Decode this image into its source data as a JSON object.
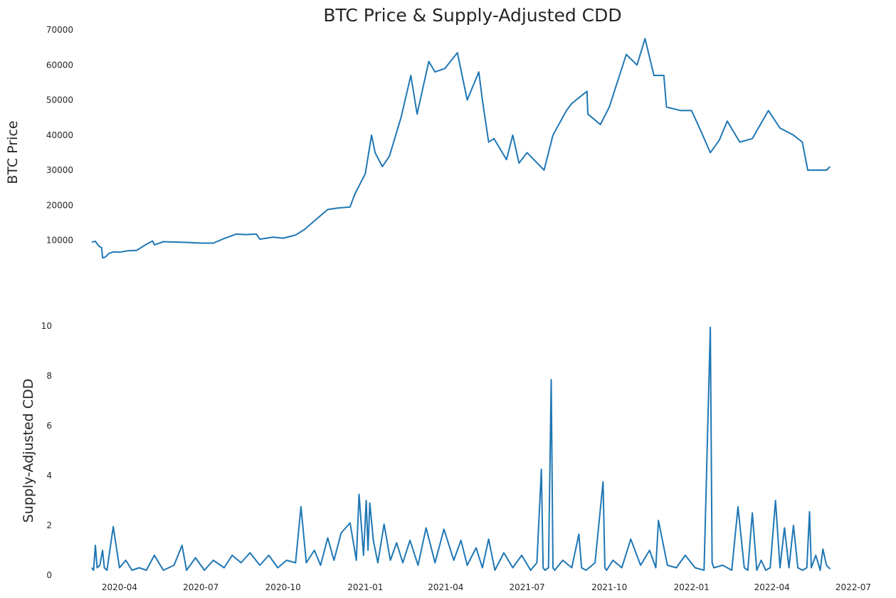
{
  "chart_data": [
    {
      "type": "line",
      "title": "BTC Price & Supply-Adjusted CDD",
      "ylabel": "BTC  Price",
      "xlabel": "",
      "ylim": [
        3000,
        70000
      ],
      "yticks": [
        10000,
        20000,
        30000,
        40000,
        50000,
        60000,
        70000
      ],
      "grid": false,
      "series": [
        {
          "x": [
            "2020-03-01",
            "2020-03-05",
            "2020-03-09",
            "2020-03-12",
            "2020-03-13",
            "2020-03-16",
            "2020-03-20",
            "2020-03-25",
            "2020-04-01",
            "2020-04-10",
            "2020-04-20",
            "2020-04-30",
            "2020-05-08",
            "2020-05-10",
            "2020-05-20",
            "2020-06-01",
            "2020-06-15",
            "2020-07-01",
            "2020-07-15",
            "2020-07-27",
            "2020-08-10",
            "2020-08-20",
            "2020-09-01",
            "2020-09-05",
            "2020-09-20",
            "2020-10-01",
            "2020-10-15",
            "2020-10-25",
            "2020-11-05",
            "2020-11-20",
            "2020-12-01",
            "2020-12-15",
            "2020-12-20",
            "2021-01-01",
            "2021-01-08",
            "2021-01-12",
            "2021-01-20",
            "2021-01-28",
            "2021-02-10",
            "2021-02-21",
            "2021-02-28",
            "2021-03-13",
            "2021-03-20",
            "2021-03-31",
            "2021-04-14",
            "2021-04-25",
            "2021-05-08",
            "2021-05-12",
            "2021-05-19",
            "2021-05-25",
            "2021-06-08",
            "2021-06-15",
            "2021-06-22",
            "2021-07-01",
            "2021-07-20",
            "2021-07-30",
            "2021-08-14",
            "2021-08-20",
            "2021-09-06",
            "2021-09-07",
            "2021-09-21",
            "2021-10-01",
            "2021-10-20",
            "2021-11-01",
            "2021-11-10",
            "2021-11-20",
            "2021-12-01",
            "2021-12-04",
            "2021-12-20",
            "2022-01-01",
            "2022-01-10",
            "2022-01-22",
            "2022-02-01",
            "2022-02-10",
            "2022-02-24",
            "2022-03-10",
            "2022-03-28",
            "2022-04-10",
            "2022-04-25",
            "2022-05-05",
            "2022-05-11",
            "2022-05-20",
            "2022-06-01",
            "2022-06-05"
          ],
          "y": [
            9500,
            9700,
            8300,
            7900,
            5000,
            5200,
            6200,
            6700,
            6600,
            7000,
            7100,
            8700,
            9800,
            8700,
            9600,
            9500,
            9400,
            9200,
            9200,
            10500,
            11800,
            11600,
            11800,
            10300,
            10900,
            10600,
            11500,
            13100,
            15500,
            18800,
            19200,
            19500,
            23000,
            29000,
            40000,
            35000,
            31000,
            34000,
            45000,
            57000,
            46000,
            61000,
            58000,
            59000,
            63500,
            50000,
            58000,
            50000,
            38000,
            39000,
            33000,
            40000,
            32000,
            35000,
            30000,
            40000,
            47000,
            49000,
            52500,
            46000,
            43000,
            48000,
            63000,
            60000,
            67500,
            57000,
            57000,
            48000,
            47000,
            47000,
            42000,
            35000,
            38500,
            44000,
            38000,
            39000,
            47000,
            42000,
            40000,
            38000,
            30000,
            30000,
            30000,
            31000
          ]
        }
      ]
    },
    {
      "type": "line",
      "title": "",
      "ylabel": "Supply-Adjusted CDD",
      "xlabel": "",
      "xlim": [
        "2020-03-01",
        "2022-07-01"
      ],
      "xticks": [
        "2020-04",
        "2020-07",
        "2020-10",
        "2021-01",
        "2021-04",
        "2021-07",
        "2021-10",
        "2022-01",
        "2022-04",
        "2022-07"
      ],
      "ylim": [
        0,
        10
      ],
      "yticks": [
        0,
        2,
        4,
        6,
        8,
        10
      ],
      "grid": false,
      "series": [
        {
          "x": [
            "2020-03-01",
            "2020-03-03",
            "2020-03-05",
            "2020-03-07",
            "2020-03-10",
            "2020-03-13",
            "2020-03-15",
            "2020-03-18",
            "2020-03-25",
            "2020-04-01",
            "2020-04-08",
            "2020-04-15",
            "2020-04-23",
            "2020-05-01",
            "2020-05-10",
            "2020-05-20",
            "2020-06-01",
            "2020-06-10",
            "2020-06-15",
            "2020-06-25",
            "2020-07-05",
            "2020-07-15",
            "2020-07-27",
            "2020-08-05",
            "2020-08-15",
            "2020-08-25",
            "2020-09-05",
            "2020-09-15",
            "2020-09-25",
            "2020-10-05",
            "2020-10-15",
            "2020-10-21",
            "2020-10-27",
            "2020-11-05",
            "2020-11-12",
            "2020-11-20",
            "2020-11-27",
            "2020-12-05",
            "2020-12-15",
            "2020-12-22",
            "2020-12-25",
            "2020-12-30",
            "2021-01-02",
            "2021-01-04",
            "2021-01-06",
            "2021-01-10",
            "2021-01-15",
            "2021-01-22",
            "2021-01-29",
            "2021-02-05",
            "2021-02-12",
            "2021-02-20",
            "2021-03-01",
            "2021-03-10",
            "2021-03-20",
            "2021-03-30",
            "2021-04-10",
            "2021-04-18",
            "2021-04-25",
            "2021-05-05",
            "2021-05-12",
            "2021-05-19",
            "2021-05-26",
            "2021-06-05",
            "2021-06-15",
            "2021-06-25",
            "2021-07-05",
            "2021-07-12",
            "2021-07-17",
            "2021-07-19",
            "2021-07-21",
            "2021-07-25",
            "2021-07-28",
            "2021-07-30",
            "2021-08-01",
            "2021-08-10",
            "2021-08-20",
            "2021-08-28",
            "2021-08-31",
            "2021-09-05",
            "2021-09-15",
            "2021-09-24",
            "2021-09-26",
            "2021-09-28",
            "2021-10-05",
            "2021-10-15",
            "2021-10-25",
            "2021-11-05",
            "2021-11-15",
            "2021-11-22",
            "2021-11-25",
            "2021-12-05",
            "2021-12-15",
            "2021-12-25",
            "2022-01-05",
            "2022-01-15",
            "2022-01-22",
            "2022-01-24",
            "2022-01-26",
            "2022-02-05",
            "2022-02-15",
            "2022-02-22",
            "2022-03-01",
            "2022-03-05",
            "2022-03-10",
            "2022-03-15",
            "2022-03-20",
            "2022-03-25",
            "2022-03-30",
            "2022-04-05",
            "2022-04-10",
            "2022-04-15",
            "2022-04-20",
            "2022-04-25",
            "2022-04-30",
            "2022-05-05",
            "2022-05-10",
            "2022-05-13",
            "2022-05-15",
            "2022-05-20",
            "2022-05-25",
            "2022-05-28",
            "2022-06-01",
            "2022-06-05"
          ],
          "y": [
            0.3,
            0.2,
            1.2,
            0.3,
            0.4,
            1.0,
            0.3,
            0.2,
            1.95,
            0.3,
            0.6,
            0.2,
            0.3,
            0.2,
            0.8,
            0.2,
            0.4,
            1.2,
            0.2,
            0.7,
            0.2,
            0.6,
            0.3,
            0.8,
            0.5,
            0.9,
            0.4,
            0.8,
            0.3,
            0.6,
            0.5,
            2.75,
            0.5,
            1.0,
            0.4,
            1.5,
            0.6,
            1.7,
            2.1,
            0.6,
            3.25,
            0.8,
            3.0,
            1.0,
            2.9,
            1.4,
            0.5,
            2.05,
            0.6,
            1.3,
            0.5,
            1.4,
            0.4,
            1.9,
            0.5,
            1.85,
            0.6,
            1.4,
            0.4,
            1.1,
            0.3,
            1.45,
            0.2,
            0.9,
            0.3,
            0.8,
            0.2,
            0.5,
            4.25,
            0.3,
            0.2,
            0.3,
            7.85,
            0.3,
            0.2,
            0.6,
            0.3,
            1.65,
            0.3,
            0.2,
            0.5,
            3.75,
            0.3,
            0.2,
            0.6,
            0.3,
            1.45,
            0.4,
            1.0,
            0.3,
            2.2,
            0.4,
            0.3,
            0.8,
            0.3,
            0.2,
            9.95,
            0.5,
            0.3,
            0.4,
            0.2,
            2.75,
            0.3,
            0.2,
            2.5,
            0.2,
            0.6,
            0.2,
            0.3,
            3.0,
            0.3,
            1.9,
            0.3,
            2.0,
            0.3,
            0.2,
            0.3,
            2.55,
            0.3,
            0.8,
            0.2,
            1.05,
            0.4,
            0.25
          ]
        }
      ]
    }
  ]
}
